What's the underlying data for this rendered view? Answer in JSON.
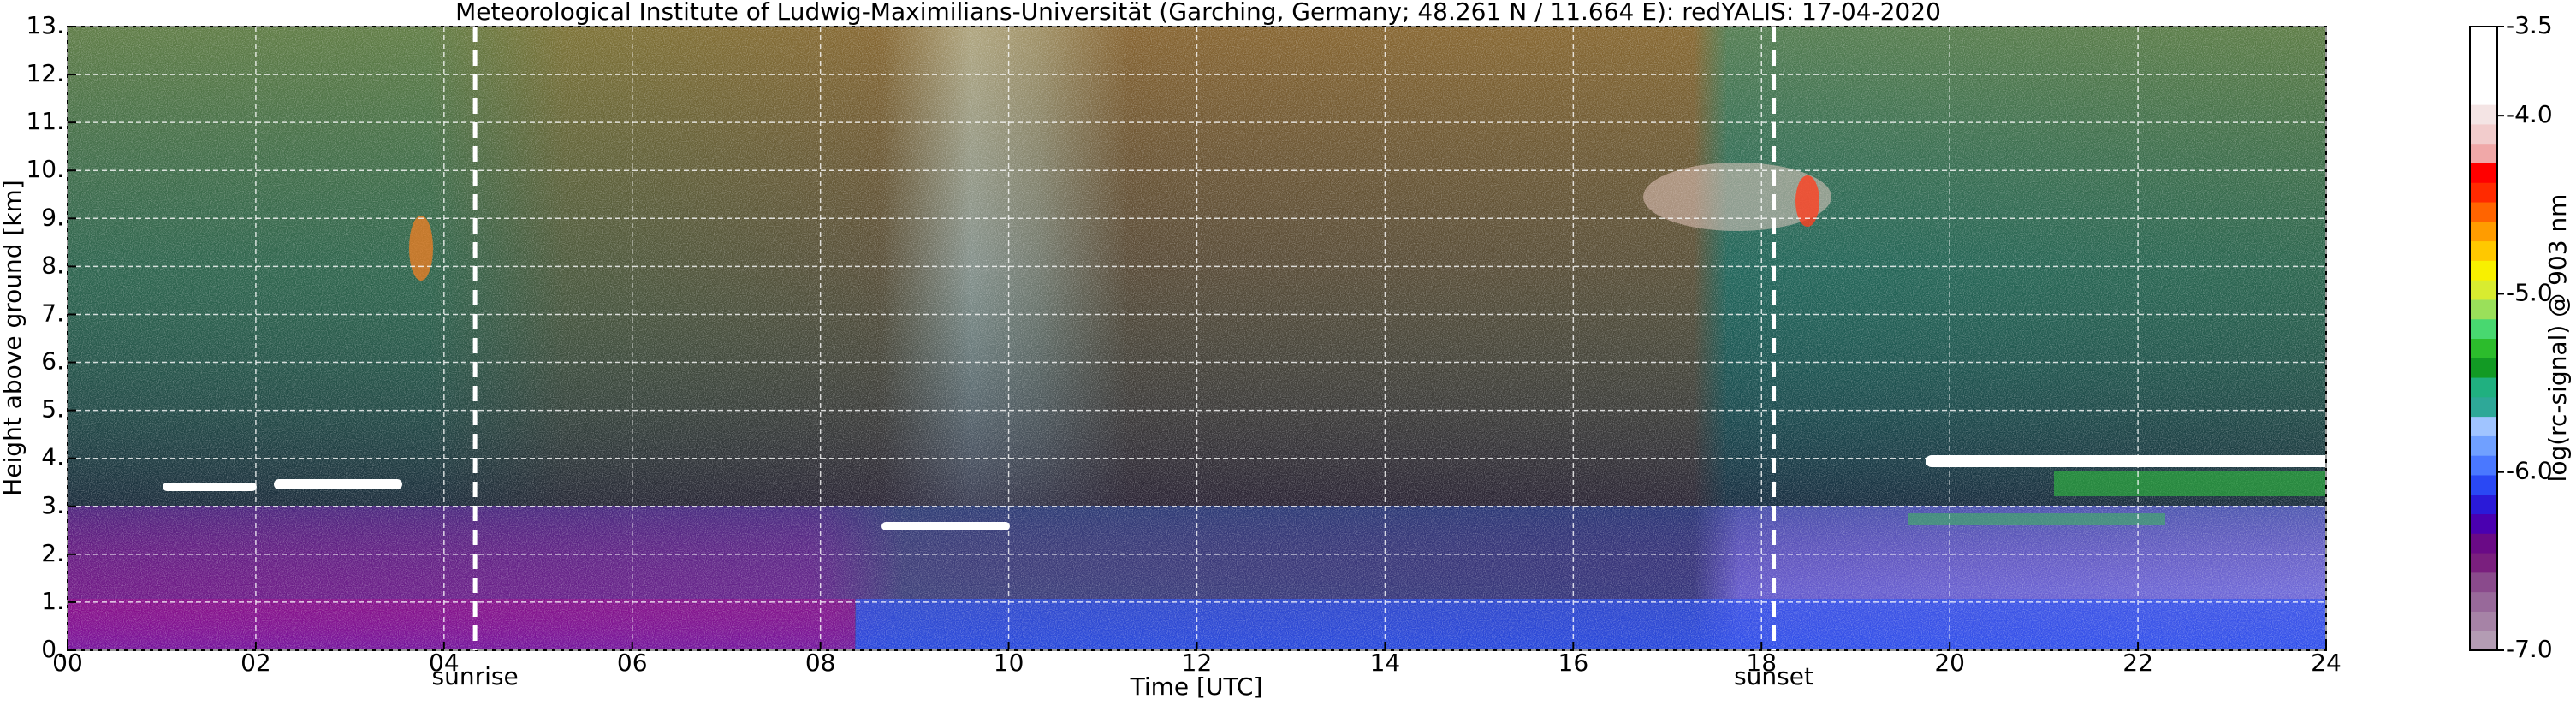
{
  "chart_data": {
    "type": "heatmap",
    "title": "Meteorological Institute of Ludwig-Maximilians-Universität (Garching, Germany; 48.261 N / 11.664 E):    redYALIS: 17-04-2020",
    "xlabel": "Time [UTC]",
    "ylabel": "Height above ground [km]",
    "xlim": [
      0,
      24
    ],
    "xticks": [
      {
        "value": 0,
        "label": "00"
      },
      {
        "value": 2,
        "label": "02"
      },
      {
        "value": 4,
        "label": "04"
      },
      {
        "value": 6,
        "label": "06"
      },
      {
        "value": 8,
        "label": "08"
      },
      10,
      12,
      14,
      16,
      18,
      20,
      22,
      24
    ],
    "ylim": [
      0,
      13
    ],
    "yticks": [
      {
        "value": 0,
        "label": "0."
      },
      {
        "value": 1,
        "label": "1."
      },
      {
        "value": 2,
        "label": "2."
      },
      {
        "value": 3,
        "label": "3."
      },
      {
        "value": 4,
        "label": "4."
      },
      {
        "value": 5,
        "label": "5."
      },
      {
        "value": 6,
        "label": "6."
      },
      {
        "value": 7,
        "label": "7."
      },
      {
        "value": 8,
        "label": "8."
      },
      {
        "value": 9,
        "label": "9."
      },
      {
        "value": 10,
        "label": "10."
      },
      {
        "value": 11,
        "label": "11."
      },
      {
        "value": 12,
        "label": "12."
      },
      {
        "value": 13,
        "label": "13."
      }
    ],
    "grid": true,
    "colorbar": {
      "label": "log(rc-signal) @ 903 nm",
      "lim": [
        -7,
        -3.5
      ],
      "ticks": [
        {
          "value": -7,
          "label": "-7.0"
        },
        {
          "value": -6,
          "label": "-6.0"
        },
        {
          "value": -5,
          "label": "-5.0"
        },
        {
          "value": -4,
          "label": "-4.0"
        },
        -3.5
      ],
      "colors": [
        "#b39cb3",
        "#a683a6",
        "#98699a",
        "#8a4a8c",
        "#7a1f7e",
        "#6a0a86",
        "#4a00b0",
        "#2a1ad8",
        "#2a48f4",
        "#4a78ff",
        "#70a0ff",
        "#a0c4ff",
        "#2ea898",
        "#20b080",
        "#129a24",
        "#2cbc2c",
        "#48d870",
        "#9ae05a",
        "#d8ec30",
        "#f8f000",
        "#ffc800",
        "#ff9c00",
        "#ff6400",
        "#ff2a00",
        "#ff0000",
        "#f0a8a8",
        "#f2cccc",
        "#f4e4e4",
        "#ffffff",
        "#ffffff",
        "#ffffff",
        "#ffffff"
      ]
    },
    "annotations": [
      {
        "text": "sunrise",
        "x": 4.33
      },
      {
        "text": "sunset",
        "x": 18.13
      }
    ]
  }
}
